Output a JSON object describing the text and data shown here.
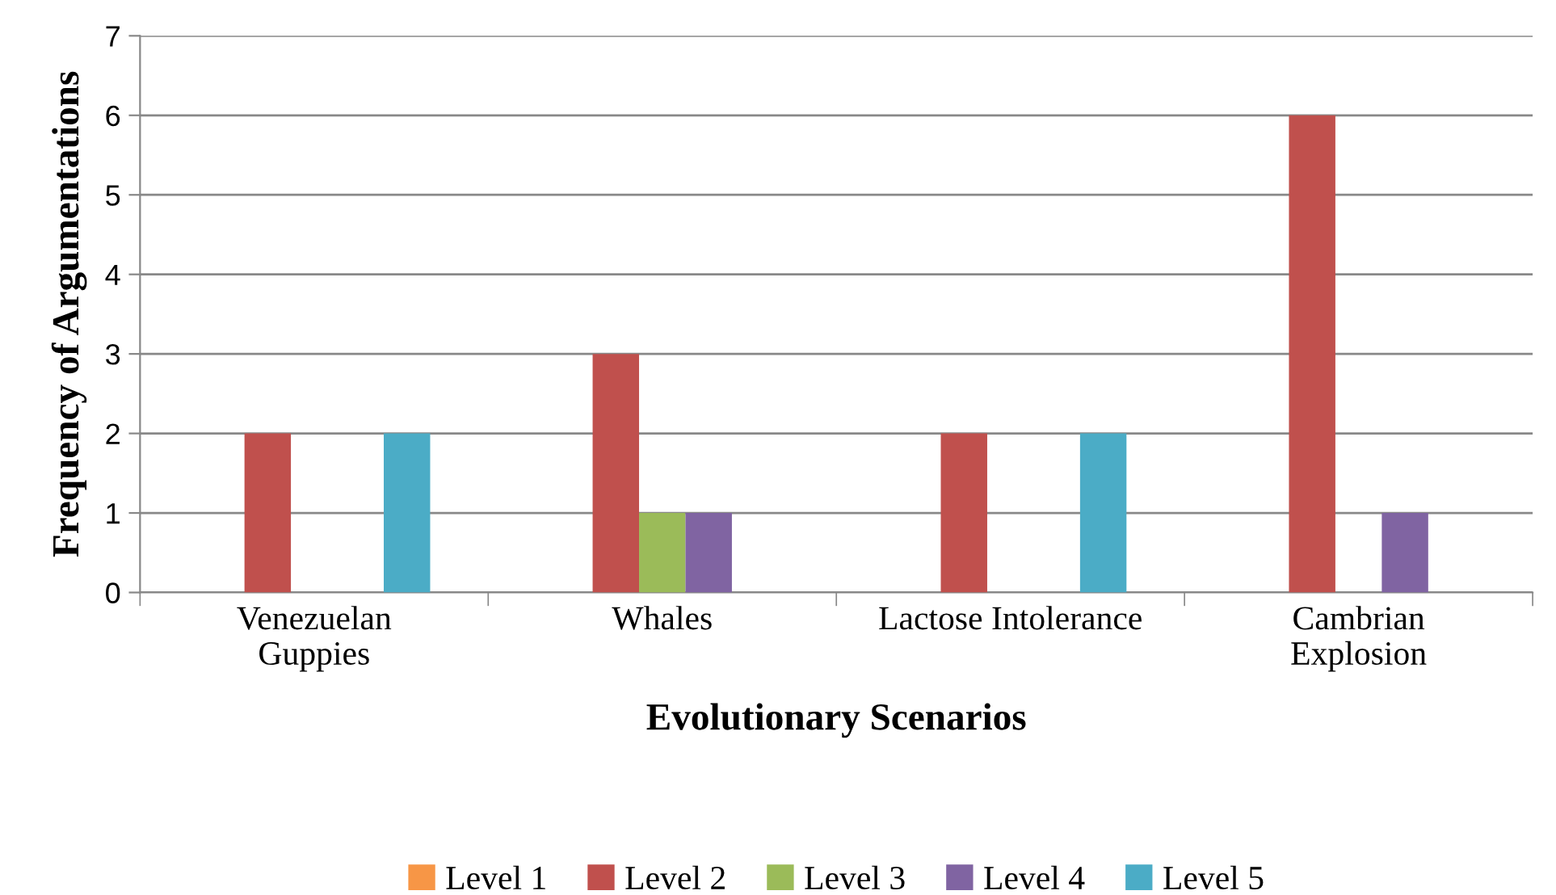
{
  "chart_data": {
    "type": "bar",
    "xlabel": "Evolutionary Scenarios",
    "ylabel": "Frequency of Argumentations",
    "categories": [
      "Venezuelan\nGuppies",
      "Whales",
      "Lactose Intolerance",
      "Cambrian\nExplosion"
    ],
    "series": [
      {
        "name": "Level 1",
        "color": "#f79646",
        "values": [
          0,
          0,
          0,
          0
        ]
      },
      {
        "name": "Level 2",
        "color": "#c0504d",
        "values": [
          2,
          3,
          2,
          6
        ]
      },
      {
        "name": "Level 3",
        "color": "#9bbb59",
        "values": [
          0,
          1,
          0,
          0
        ]
      },
      {
        "name": "Level 4",
        "color": "#8064a2",
        "values": [
          0,
          1,
          0,
          1
        ]
      },
      {
        "name": "Level 5",
        "color": "#4bacc6",
        "values": [
          2,
          0,
          2,
          0
        ]
      }
    ],
    "ylim": [
      0,
      7
    ],
    "yticks": [
      0,
      1,
      2,
      3,
      4,
      5,
      6,
      7
    ],
    "grid": "y",
    "legend": "bottom"
  }
}
